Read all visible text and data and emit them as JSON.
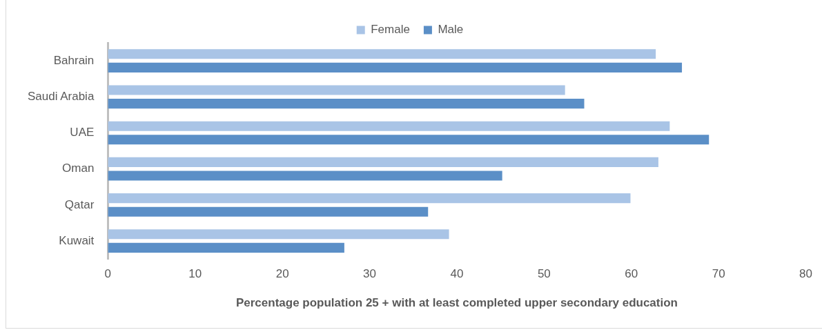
{
  "chart_data": {
    "type": "bar",
    "orientation": "horizontal",
    "xlabel": "Percentage population 25 + with at least completed upper secondary education",
    "categories": [
      "Bahrain",
      "Saudi Arabia",
      "UAE",
      "Oman",
      "Qatar",
      "Kuwait"
    ],
    "series": [
      {
        "name": "Female",
        "color": "#a9c4e6",
        "values": [
          62.8,
          52.4,
          64.4,
          63.1,
          59.9,
          39.1
        ]
      },
      {
        "name": "Male",
        "color": "#5b8fc7",
        "values": [
          65.8,
          54.6,
          68.9,
          45.2,
          36.7,
          27.1
        ]
      }
    ],
    "xlim": [
      0,
      80
    ],
    "xticks": [
      0,
      10,
      20,
      30,
      40,
      50,
      60,
      70,
      80
    ],
    "grid": false,
    "legend": "top"
  }
}
